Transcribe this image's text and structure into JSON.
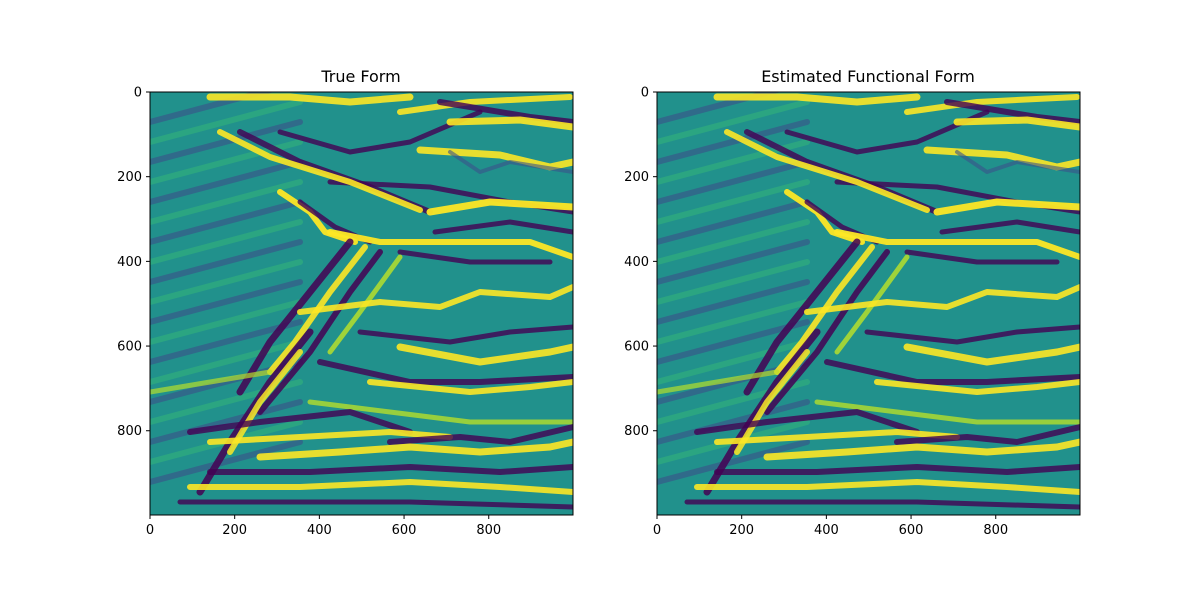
{
  "chart_data": [
    {
      "type": "heatmap",
      "title": "True Form",
      "colormap": "viridis",
      "x_range": [
        0,
        999
      ],
      "y_range": [
        0,
        999
      ],
      "y_inverted": true,
      "x_ticks": [
        "0",
        "200",
        "400",
        "600",
        "800"
      ],
      "y_ticks": [
        "0",
        "200",
        "400",
        "600",
        "800"
      ]
    },
    {
      "type": "heatmap",
      "title": "Estimated Functional Form",
      "colormap": "viridis",
      "x_range": [
        0,
        999
      ],
      "y_range": [
        0,
        999
      ],
      "y_inverted": true,
      "x_ticks": [
        "0",
        "200",
        "400",
        "600",
        "800"
      ],
      "y_ticks": [
        "0",
        "200",
        "400",
        "600",
        "800"
      ]
    }
  ]
}
